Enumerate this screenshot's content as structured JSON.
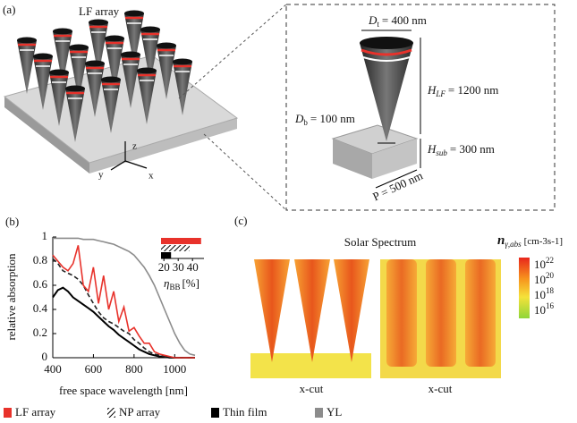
{
  "panel_a": {
    "label": "(a)",
    "title": "LF array",
    "axes": {
      "z": "z",
      "y": "y",
      "x": "x"
    },
    "dt": {
      "symbol": "D",
      "sub": "t",
      "value": "= 400 nm"
    },
    "db": {
      "symbol": "D",
      "sub": "b",
      "value": "= 100 nm"
    },
    "hlf": {
      "symbol": "H",
      "sub": "LF",
      "value": "= 1200 nm"
    },
    "hsub": {
      "symbol": "H",
      "sub": "sub",
      "value": "= 300 nm"
    },
    "period": "P = 500 nm"
  },
  "chart_data": {
    "type": "line",
    "label": "(b)",
    "xlabel": "free space wavelength [nm]",
    "ylabel": "relative absorption",
    "x": [
      400,
      425,
      450,
      475,
      500,
      525,
      550,
      575,
      600,
      625,
      650,
      675,
      700,
      725,
      750,
      775,
      800,
      825,
      850,
      875,
      900,
      925,
      950,
      975,
      1000,
      1025,
      1050,
      1075,
      1100
    ],
    "series": [
      {
        "name": "LF array",
        "color": "#e8322b",
        "style": "solid",
        "values": [
          0.85,
          0.8,
          0.75,
          0.72,
          0.78,
          0.93,
          0.6,
          0.55,
          0.75,
          0.45,
          0.68,
          0.4,
          0.55,
          0.3,
          0.42,
          0.22,
          0.25,
          0.18,
          0.12,
          0.12,
          0.05,
          0.03,
          0.02,
          0.01,
          0,
          0,
          0,
          0,
          0
        ]
      },
      {
        "name": "NP array",
        "color": "#222222",
        "style": "dashed",
        "values": [
          0.82,
          0.78,
          0.72,
          0.7,
          0.68,
          0.65,
          0.6,
          0.52,
          0.45,
          0.38,
          0.33,
          0.3,
          0.28,
          0.25,
          0.22,
          0.2,
          0.15,
          0.12,
          0.08,
          0.05,
          0.03,
          0.02,
          0.01,
          0,
          0,
          0,
          0,
          0,
          0
        ]
      },
      {
        "name": "Thin film",
        "color": "#000000",
        "style": "solid",
        "values": [
          0.5,
          0.56,
          0.58,
          0.55,
          0.5,
          0.47,
          0.44,
          0.41,
          0.38,
          0.34,
          0.3,
          0.26,
          0.23,
          0.19,
          0.16,
          0.13,
          0.1,
          0.07,
          0.05,
          0.03,
          0.02,
          0.01,
          0.01,
          0,
          0,
          0,
          0,
          0,
          0
        ]
      },
      {
        "name": "YL",
        "color": "#8c8c8c",
        "style": "solid",
        "values": [
          0.99,
          0.99,
          0.99,
          0.99,
          0.99,
          0.99,
          0.98,
          0.98,
          0.98,
          0.97,
          0.96,
          0.95,
          0.94,
          0.92,
          0.9,
          0.88,
          0.85,
          0.8,
          0.75,
          0.68,
          0.6,
          0.5,
          0.4,
          0.3,
          0.2,
          0.12,
          0.06,
          0.03,
          0.02
        ]
      }
    ],
    "xlim": [
      400,
      1100
    ],
    "ylim": [
      0,
      1
    ],
    "xticks": [
      400,
      600,
      800,
      1000
    ],
    "yticks": [
      0,
      0.2,
      0.4,
      0.6,
      0.8,
      1
    ],
    "inset": {
      "type": "bar",
      "values": [
        46,
        38,
        25
      ],
      "fills": [
        "#e8322b",
        "hatch",
        "#000000"
      ],
      "xlim": [
        18,
        48
      ],
      "xticks": [
        20,
        30,
        40
      ],
      "xlabel": "η",
      "xlabel_sub": "BB",
      "xlabel_unit": "[%]"
    }
  },
  "panel_c": {
    "label": "(c)",
    "title": "Solar Spectrum",
    "colorbar_label": {
      "symbol": "n",
      "sub": "γ,abs",
      "unit": "[cm-3s-1]"
    },
    "colorbar_ticks": [
      {
        "base": "10",
        "exp": "22"
      },
      {
        "base": "10",
        "exp": "20"
      },
      {
        "base": "10",
        "exp": "18"
      },
      {
        "base": "10",
        "exp": "16"
      }
    ],
    "cuts": [
      "x-cut",
      "x-cut"
    ]
  }
}
